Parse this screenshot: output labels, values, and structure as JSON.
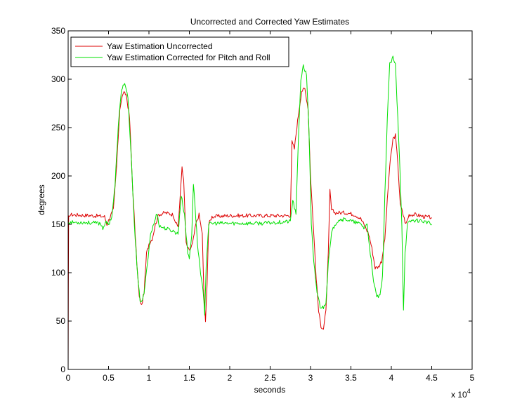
{
  "chart_data": {
    "type": "line",
    "title": "Uncorrected and Corrected Yaw Estimates",
    "xlabel": "seconds",
    "ylabel": "degrees",
    "x_exponent_label": "x 10",
    "x_exponent_power": "4",
    "xlim": [
      0,
      5
    ],
    "ylim": [
      0,
      350
    ],
    "xticks": [
      0,
      0.5,
      1,
      1.5,
      2,
      2.5,
      3,
      3.5,
      4,
      4.5,
      5
    ],
    "xtick_labels": [
      "0",
      "0.5",
      "1",
      "1.5",
      "2",
      "2.5",
      "3",
      "3.5",
      "4",
      "4.5",
      "5"
    ],
    "yticks": [
      0,
      50,
      100,
      150,
      200,
      250,
      300,
      350
    ],
    "ytick_labels": [
      "0",
      "50",
      "100",
      "150",
      "200",
      "250",
      "300",
      "350"
    ],
    "grid": false,
    "legend_position": "top-left",
    "series": [
      {
        "name": "Yaw Estimation Uncorrected",
        "color": "#dd0000",
        "points": [
          [
            0,
            0
          ],
          [
            0.003,
            80
          ],
          [
            0.006,
            157
          ],
          [
            0.02,
            160
          ],
          [
            0.3,
            159
          ],
          [
            0.45,
            158
          ],
          [
            0.48,
            150
          ],
          [
            0.52,
            158
          ],
          [
            0.56,
            165
          ],
          [
            0.6,
            210
          ],
          [
            0.64,
            270
          ],
          [
            0.68,
            286
          ],
          [
            0.72,
            284
          ],
          [
            0.76,
            260
          ],
          [
            0.8,
            185
          ],
          [
            0.85,
            110
          ],
          [
            0.88,
            75
          ],
          [
            0.91,
            66
          ],
          [
            0.94,
            80
          ],
          [
            0.97,
            120
          ],
          [
            1.0,
            130
          ],
          [
            1.04,
            135
          ],
          [
            1.08,
            150
          ],
          [
            1.12,
            160
          ],
          [
            1.2,
            162
          ],
          [
            1.3,
            160
          ],
          [
            1.34,
            150
          ],
          [
            1.36,
            148
          ],
          [
            1.38,
            170
          ],
          [
            1.41,
            210
          ],
          [
            1.43,
            195
          ],
          [
            1.46,
            130
          ],
          [
            1.5,
            122
          ],
          [
            1.54,
            130
          ],
          [
            1.58,
            150
          ],
          [
            1.62,
            160
          ],
          [
            1.66,
            140
          ],
          [
            1.68,
            80
          ],
          [
            1.7,
            48
          ],
          [
            1.72,
            90
          ],
          [
            1.74,
            150
          ],
          [
            1.78,
            158
          ],
          [
            2.0,
            159
          ],
          [
            2.5,
            159
          ],
          [
            2.75,
            159
          ],
          [
            2.77,
            235
          ],
          [
            2.8,
            228
          ],
          [
            2.83,
            250
          ],
          [
            2.86,
            270
          ],
          [
            2.89,
            288
          ],
          [
            2.93,
            290
          ],
          [
            2.97,
            270
          ],
          [
            3.0,
            200
          ],
          [
            3.04,
            140
          ],
          [
            3.07,
            95
          ],
          [
            3.1,
            60
          ],
          [
            3.13,
            45
          ],
          [
            3.16,
            42
          ],
          [
            3.19,
            60
          ],
          [
            3.22,
            120
          ],
          [
            3.24,
            185
          ],
          [
            3.26,
            165
          ],
          [
            3.3,
            162
          ],
          [
            3.45,
            162
          ],
          [
            3.55,
            160
          ],
          [
            3.62,
            156
          ],
          [
            3.66,
            150
          ],
          [
            3.72,
            140
          ],
          [
            3.76,
            125
          ],
          [
            3.8,
            105
          ],
          [
            3.84,
            106
          ],
          [
            3.88,
            112
          ],
          [
            3.92,
            135
          ],
          [
            3.95,
            175
          ],
          [
            3.98,
            210
          ],
          [
            4.02,
            238
          ],
          [
            4.05,
            242
          ],
          [
            4.08,
            215
          ],
          [
            4.11,
            170
          ],
          [
            4.14,
            162
          ],
          [
            4.18,
            150
          ],
          [
            4.22,
            160
          ],
          [
            4.3,
            160
          ],
          [
            4.4,
            158
          ],
          [
            4.5,
            157
          ]
        ]
      },
      {
        "name": "Yaw Estimation Corrected for Pitch and Roll",
        "color": "#00e000",
        "points": [
          [
            0,
            152
          ],
          [
            0.2,
            152
          ],
          [
            0.4,
            151
          ],
          [
            0.43,
            146
          ],
          [
            0.46,
            152
          ],
          [
            0.5,
            150
          ],
          [
            0.54,
            158
          ],
          [
            0.58,
            190
          ],
          [
            0.62,
            250
          ],
          [
            0.66,
            290
          ],
          [
            0.7,
            296
          ],
          [
            0.74,
            280
          ],
          [
            0.78,
            220
          ],
          [
            0.82,
            150
          ],
          [
            0.86,
            95
          ],
          [
            0.89,
            72
          ],
          [
            0.92,
            70
          ],
          [
            0.95,
            85
          ],
          [
            0.98,
            110
          ],
          [
            1.02,
            140
          ],
          [
            1.06,
            150
          ],
          [
            1.1,
            162
          ],
          [
            1.13,
            148
          ],
          [
            1.2,
            146
          ],
          [
            1.3,
            143
          ],
          [
            1.36,
            140
          ],
          [
            1.4,
            180
          ],
          [
            1.44,
            160
          ],
          [
            1.48,
            120
          ],
          [
            1.5,
            115
          ],
          [
            1.53,
            140
          ],
          [
            1.55,
            192
          ],
          [
            1.57,
            170
          ],
          [
            1.6,
            130
          ],
          [
            1.64,
            100
          ],
          [
            1.67,
            80
          ],
          [
            1.69,
            58
          ],
          [
            1.71,
            110
          ],
          [
            1.74,
            150
          ],
          [
            1.8,
            151
          ],
          [
            2.0,
            151
          ],
          [
            2.4,
            151
          ],
          [
            2.75,
            153
          ],
          [
            2.78,
            175
          ],
          [
            2.82,
            160
          ],
          [
            2.85,
            240
          ],
          [
            2.88,
            300
          ],
          [
            2.91,
            313
          ],
          [
            2.95,
            305
          ],
          [
            2.98,
            250
          ],
          [
            3.01,
            150
          ],
          [
            3.04,
            110
          ],
          [
            3.08,
            80
          ],
          [
            3.12,
            65
          ],
          [
            3.16,
            64
          ],
          [
            3.19,
            70
          ],
          [
            3.22,
            110
          ],
          [
            3.26,
            140
          ],
          [
            3.3,
            150
          ],
          [
            3.35,
            155
          ],
          [
            3.45,
            155
          ],
          [
            3.55,
            152
          ],
          [
            3.63,
            150
          ],
          [
            3.66,
            146
          ],
          [
            3.7,
            150
          ],
          [
            3.74,
            120
          ],
          [
            3.78,
            90
          ],
          [
            3.82,
            76
          ],
          [
            3.86,
            75
          ],
          [
            3.89,
            95
          ],
          [
            3.92,
            180
          ],
          [
            3.95,
            260
          ],
          [
            3.98,
            315
          ],
          [
            4.02,
            322
          ],
          [
            4.05,
            315
          ],
          [
            4.08,
            260
          ],
          [
            4.11,
            200
          ],
          [
            4.13,
            150
          ],
          [
            4.15,
            62
          ],
          [
            4.17,
            120
          ],
          [
            4.2,
            150
          ],
          [
            4.25,
            154
          ],
          [
            4.35,
            154
          ],
          [
            4.45,
            152
          ],
          [
            4.5,
            150
          ]
        ]
      }
    ]
  }
}
